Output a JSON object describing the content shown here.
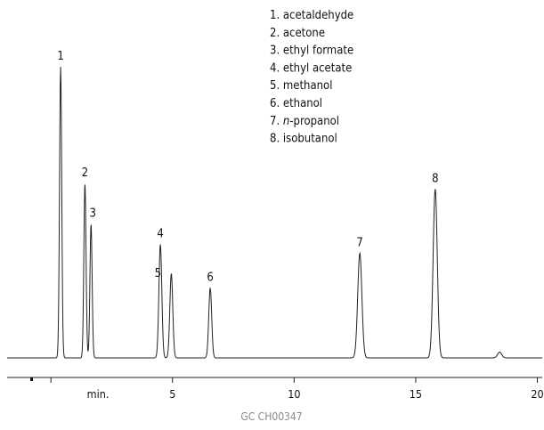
{
  "chart_data": {
    "type": "line",
    "chart_kind": "gas chromatogram",
    "xlabel": "min.",
    "xlim": [
      -1.8,
      20.2
    ],
    "x_ticks": [
      5,
      10,
      15,
      20
    ],
    "ylim": [
      0,
      1.0
    ],
    "grid": false,
    "legend_placement": "top-center",
    "footer": "GC  CH00347",
    "peaks": [
      {
        "number": "1",
        "name": "acetaldehyde",
        "rt": 0.4,
        "height": 1.0
      },
      {
        "number": "2",
        "name": "acetone",
        "rt": 1.4,
        "height": 0.6
      },
      {
        "number": "3",
        "name": "ethyl formate",
        "rt": 1.65,
        "height": 0.46
      },
      {
        "number": "4",
        "name": "ethyl acetate",
        "rt": 4.5,
        "height": 0.39
      },
      {
        "number": "5",
        "name": "methanol",
        "rt": 4.95,
        "height": 0.29
      },
      {
        "number": "6",
        "name": "ethanol",
        "rt": 6.55,
        "height": 0.24
      },
      {
        "number": "7",
        "name": "n-propanol",
        "rt": 12.7,
        "height": 0.36
      },
      {
        "number": "8",
        "name": "isobutanol",
        "rt": 15.8,
        "height": 0.58
      }
    ],
    "minor_peaks": [
      {
        "rt": 18.45,
        "height": 0.02
      }
    ],
    "legend": [
      {
        "num": "1.",
        "name": "acetaldehyde"
      },
      {
        "num": "2.",
        "name": "acetone"
      },
      {
        "num": "3.",
        "name": "ethyl formate"
      },
      {
        "num": "4.",
        "name": "ethyl acetate"
      },
      {
        "num": "5.",
        "name": "methanol"
      },
      {
        "num": "6.",
        "name": "ethanol"
      },
      {
        "num": "7.",
        "name": "-propanol",
        "italic_prefix": "n"
      },
      {
        "num": "8.",
        "name": "isobutanol"
      }
    ]
  }
}
